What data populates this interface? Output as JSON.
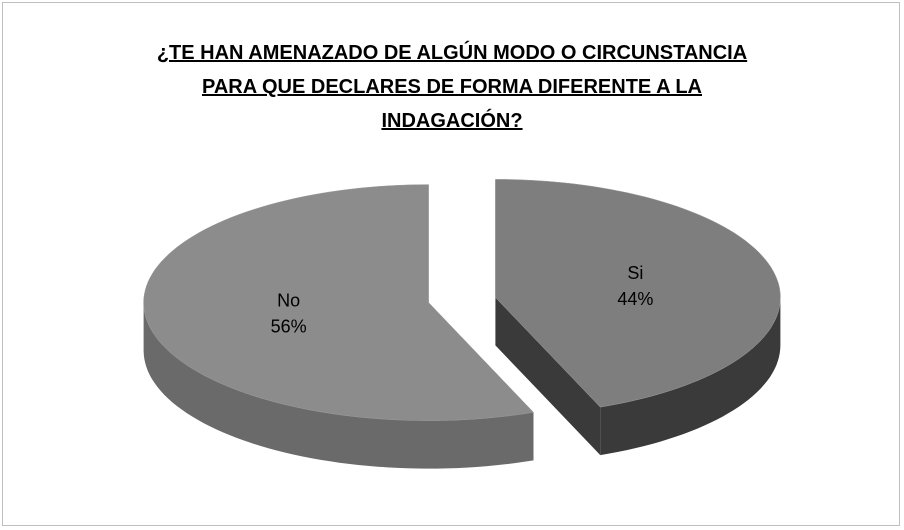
{
  "chart_data": {
    "type": "pie",
    "title": "¿TE HAN AMENAZADO DE ALGÚN MODO O CIRCUNSTANCIA PARA QUE DECLARES DE FORMA DIFERENTE A LA INDAGACIÓN?",
    "categories": [
      "Si",
      "No"
    ],
    "values": [
      44,
      56
    ],
    "value_labels": [
      "44%",
      "56%"
    ],
    "colors": [
      "#7e7e7e",
      "#8c8c8c"
    ],
    "side_colors": [
      "#3a3a3a",
      "#6a6a6a"
    ],
    "style": "3d-exploded"
  }
}
